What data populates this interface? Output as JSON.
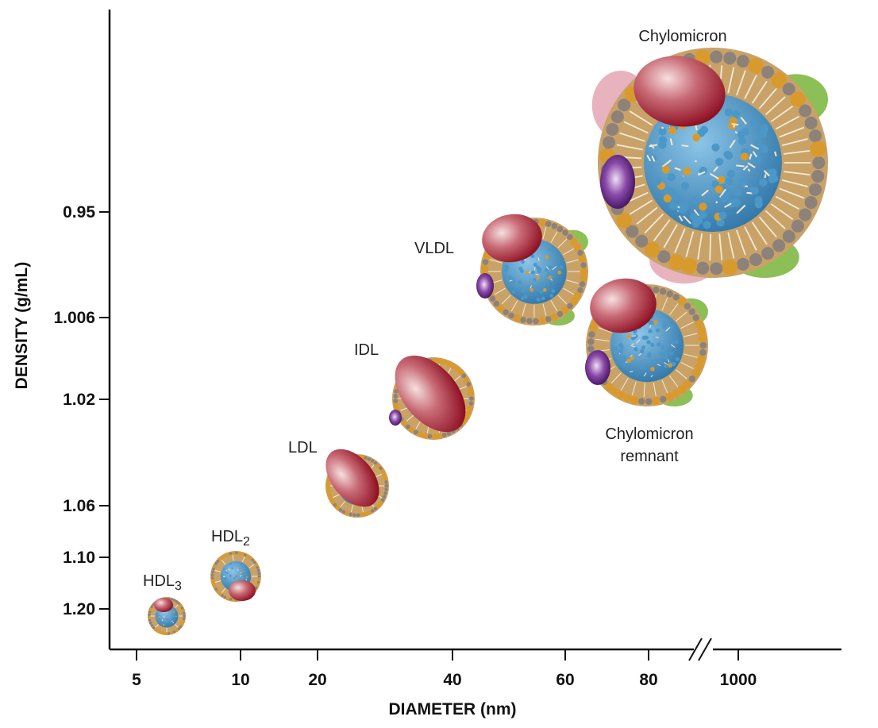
{
  "chart_data": {
    "type": "scatter",
    "title": "",
    "xlabel": "DIAMETER (nm)",
    "ylabel": "DENSITY (g/mL)",
    "x_ticks": [
      "5",
      "10",
      "20",
      "40",
      "60",
      "80",
      "1000"
    ],
    "y_ticks": [
      "0.95",
      "1.006",
      "1.02",
      "1.06",
      "1.10",
      "1.20"
    ],
    "x_axis_break": "//",
    "particles": [
      {
        "name": "HDL3",
        "label": "HDL",
        "subscript": "3",
        "diameter_nm": 6,
        "density": 1.21
      },
      {
        "name": "HDL2",
        "label": "HDL",
        "subscript": "2",
        "diameter_nm": 10,
        "density": 1.15
      },
      {
        "name": "LDL",
        "label": "LDL",
        "subscript": "",
        "diameter_nm": 24,
        "density": 1.05
      },
      {
        "name": "IDL",
        "label": "IDL",
        "subscript": "",
        "diameter_nm": 35,
        "density": 1.015
      },
      {
        "name": "VLDL",
        "label": "VLDL",
        "subscript": "",
        "diameter_nm": 55,
        "density": 0.98
      },
      {
        "name": "Chylomicron remnant",
        "label": "Chylomicron",
        "label2": "remnant",
        "subscript": "",
        "diameter_nm": 75,
        "density": 1.0
      },
      {
        "name": "Chylomicron",
        "label": "Chylomicron",
        "subscript": "",
        "diameter_nm": 1000,
        "density": 0.93
      }
    ]
  },
  "colors": {
    "shell": "#c9a267",
    "phospholipid_head": "#d89a2c",
    "cholesterol": "#8c827a",
    "core": "#3a86b8",
    "apo_red": "#a3172b",
    "apo_purple": "#5a1f7a",
    "apo_green": "#8cbf55",
    "apo_pink": "#e8b3bf"
  }
}
